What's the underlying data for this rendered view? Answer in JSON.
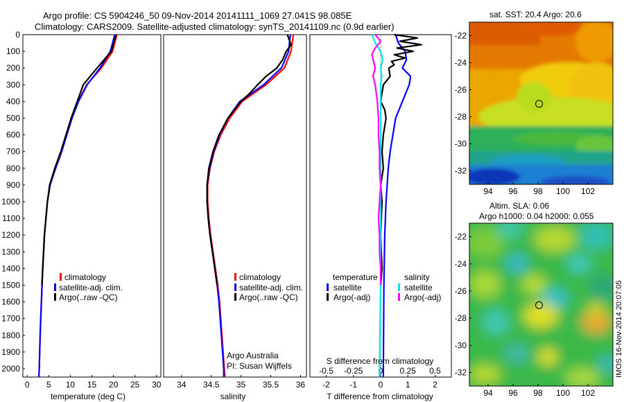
{
  "header": {
    "line1": "Argo profile: CS 5904246_50 09-Nov-2014 20141111_1069 27.041S 98.085E",
    "line2": "Climatology: CARS2009. Satellite-adjusted climatology: synTS_20141109.nc (0.9d earlier)"
  },
  "colors": {
    "climatology": "#ff0000",
    "satellite": "#0000ff",
    "argo": "#000000",
    "sal_satellite": "#00e5e5",
    "sal_argo": "#ff00ff"
  },
  "chart_data": [
    {
      "type": "line",
      "name": "temperature",
      "xlabel": "temperature (deg C)",
      "ylabel": "",
      "xlim": [
        -1,
        31
      ],
      "ylim": [
        2050,
        0
      ],
      "xticks": [
        "0",
        "5",
        "10",
        "15",
        "20",
        "25",
        "30"
      ],
      "yticks": [
        "0",
        "100",
        "200",
        "300",
        "400",
        "500",
        "600",
        "700",
        "800",
        "900",
        "1000",
        "1100",
        "1200",
        "1300",
        "1400",
        "1500",
        "1600",
        "1700",
        "1800",
        "1900",
        "2000"
      ],
      "legend": [
        "climatology",
        "satellite-adj. clim.",
        "Argo(..raw -QC)"
      ],
      "series": [
        {
          "name": "climatology",
          "depth": [
            0,
            100,
            200,
            300,
            400,
            500,
            600,
            700,
            800,
            900,
            1000,
            1200,
            1400,
            1600,
            1800,
            2000,
            2050
          ],
          "values": [
            20.8,
            19.8,
            17.2,
            13.8,
            11.8,
            10.3,
            9.1,
            7.9,
            6.5,
            5.3,
            4.7,
            4.0,
            3.6,
            3.3,
            3.0,
            2.8,
            2.7
          ]
        },
        {
          "name": "satellite-adj. clim.",
          "depth": [
            0,
            100,
            200,
            300,
            400,
            500,
            600,
            700,
            800,
            900,
            1000,
            1200,
            1400,
            1600,
            1800,
            2000,
            2050
          ],
          "values": [
            20.3,
            19.3,
            16.9,
            13.9,
            11.9,
            10.4,
            9.2,
            8.0,
            6.6,
            5.3,
            4.7,
            4.0,
            3.6,
            3.3,
            3.0,
            2.8,
            2.7
          ]
        },
        {
          "name": "Argo",
          "depth": [
            0,
            100,
            200,
            250,
            300,
            400,
            500,
            600,
            700,
            800,
            900,
            1000,
            1200,
            1400,
            1500
          ],
          "values": [
            20.6,
            19.5,
            16.2,
            14.6,
            13.0,
            11.6,
            10.2,
            9.0,
            7.8,
            6.4,
            5.2,
            4.7,
            4.0,
            3.6,
            3.4
          ]
        }
      ]
    },
    {
      "type": "line",
      "name": "salinity",
      "xlabel": "salinity",
      "ylabel": "",
      "xlim": [
        33.7,
        36.1
      ],
      "ylim": [
        2050,
        0
      ],
      "xticks": [
        "34",
        "34.5",
        "35",
        "35.5",
        "36"
      ],
      "legend": [
        "climatology",
        "satellite-adj. clim.",
        "Argo(..raw -QC)"
      ],
      "annotation": [
        "Argo Australia",
        "PI: Susan Wijffels"
      ],
      "series": [
        {
          "name": "climatology",
          "depth": [
            0,
            100,
            200,
            300,
            400,
            500,
            600,
            700,
            800,
            900,
            1000,
            1100,
            1200,
            1300,
            1400,
            1500,
            1600,
            1800,
            2000,
            2050
          ],
          "values": [
            35.88,
            35.84,
            35.73,
            35.42,
            35.02,
            34.81,
            34.66,
            34.55,
            34.48,
            34.44,
            34.44,
            34.46,
            34.49,
            34.53,
            34.57,
            34.61,
            34.64,
            34.68,
            34.72,
            34.73
          ]
        },
        {
          "name": "satellite-adj. clim.",
          "depth": [
            0,
            100,
            200,
            300,
            400,
            500,
            600,
            700,
            800,
            900,
            1000,
            1100,
            1200,
            1300,
            1400,
            1500,
            1600,
            1800,
            2000,
            2050
          ],
          "values": [
            35.83,
            35.8,
            35.68,
            35.38,
            34.98,
            34.78,
            34.64,
            34.54,
            34.47,
            34.43,
            34.43,
            34.45,
            34.48,
            34.52,
            34.56,
            34.6,
            34.63,
            34.67,
            34.71,
            34.71
          ]
        },
        {
          "name": "Argo",
          "depth": [
            0,
            60,
            100,
            150,
            200,
            250,
            300,
            350,
            400,
            500,
            600,
            700,
            800,
            900,
            1000,
            1100,
            1200,
            1300,
            1400,
            1500
          ],
          "values": [
            35.78,
            35.84,
            35.76,
            35.7,
            35.6,
            35.42,
            35.28,
            35.15,
            35.0,
            34.78,
            34.63,
            34.53,
            34.46,
            34.43,
            34.43,
            34.45,
            34.48,
            34.52,
            34.56,
            34.6
          ]
        }
      ]
    },
    {
      "type": "line",
      "name": "difference",
      "xlabel": "T difference from climatology",
      "xlabel_top": "S difference from climatology",
      "xlim": [
        -2.6,
        2.6
      ],
      "ylim": [
        2050,
        0
      ],
      "xticks": [
        "-2",
        "-1",
        "0",
        "1",
        "2"
      ],
      "sticks": [
        "-0.5",
        "-0.25",
        "0",
        "0.25",
        "0.5"
      ],
      "legend_titles": [
        "temperature",
        "salinity"
      ],
      "legend": [
        "satellite",
        "Argo(-adj)",
        "satellite",
        "Argo(-adj)"
      ],
      "series": [
        {
          "name": "T satellite",
          "depth": [
            0,
            50,
            100,
            150,
            200,
            250,
            300,
            400,
            500,
            600,
            700,
            800,
            1000,
            1200,
            1500,
            2000,
            2050
          ],
          "values": [
            0.55,
            0.65,
            0.9,
            0.95,
            0.8,
            1.1,
            1.05,
            0.8,
            0.55,
            0.45,
            0.35,
            0.28,
            0.2,
            0.15,
            0.12,
            0.1,
            0.1
          ]
        },
        {
          "name": "T Argo",
          "depth": [
            0,
            20,
            40,
            60,
            80,
            100,
            120,
            140,
            160,
            180,
            200,
            250,
            300,
            400,
            450,
            500,
            600,
            700,
            800,
            900,
            1000,
            1200,
            1400,
            1500
          ],
          "values": [
            0.5,
            1.35,
            0.7,
            1.5,
            0.6,
            1.2,
            0.5,
            0.9,
            0.4,
            0.5,
            0.3,
            0.35,
            0.1,
            0.0,
            0.15,
            0.2,
            0.1,
            0.05,
            0.1,
            0.0,
            0.05,
            0.0,
            0.05,
            0.0
          ]
        },
        {
          "name": "S satellite",
          "depth": [
            0,
            50,
            100,
            150,
            200,
            250,
            300,
            400,
            500,
            600,
            800,
            1000,
            1200,
            1500,
            2000,
            2050
          ],
          "values": [
            -0.08,
            -0.05,
            0.0,
            0.02,
            0.0,
            0.01,
            0.0,
            0.0,
            0.0,
            0.0,
            0.0,
            0.0,
            0.0,
            0.0,
            -0.01,
            -0.01
          ]
        },
        {
          "name": "S Argo",
          "depth": [
            0,
            40,
            80,
            120,
            200,
            250,
            300,
            400,
            500,
            600,
            700,
            800,
            900,
            1000,
            1100,
            1200,
            1300,
            1400,
            1500
          ],
          "values": [
            -0.05,
            0.0,
            -0.05,
            -0.08,
            -0.05,
            -0.07,
            -0.05,
            -0.03,
            -0.02,
            -0.02,
            -0.01,
            -0.01,
            0.0,
            -0.01,
            -0.02,
            -0.01,
            -0.01,
            0.0,
            0.0
          ]
        }
      ]
    },
    {
      "type": "heatmap",
      "name": "sst map",
      "title": "sat. SST: 20.4  Argo: 20.6",
      "xlim": [
        92.5,
        104
      ],
      "ylim": [
        -33,
        -21
      ],
      "xticks": [
        "94",
        "96",
        "98",
        "100",
        "102"
      ],
      "yticks": [
        "-22",
        "-24",
        "-26",
        "-28",
        "-30",
        "-32"
      ],
      "marker": [
        98.085,
        -27.041
      ]
    },
    {
      "type": "heatmap",
      "name": "sla map",
      "title_line1": "Altim. SLA: 0.06",
      "title_line2": "Argo h1000: 0.04 h2000: 0.055",
      "xlim": [
        92.5,
        104
      ],
      "ylim": [
        -33,
        -21
      ],
      "xticks": [
        "94",
        "96",
        "98",
        "100",
        "102"
      ],
      "yticks": [
        "-22",
        "-24",
        "-26",
        "-28",
        "-30",
        "-32"
      ],
      "marker": [
        98.085,
        -27.041
      ]
    }
  ],
  "stamp": "IMOS 16-Nov-2014 20:07:05"
}
